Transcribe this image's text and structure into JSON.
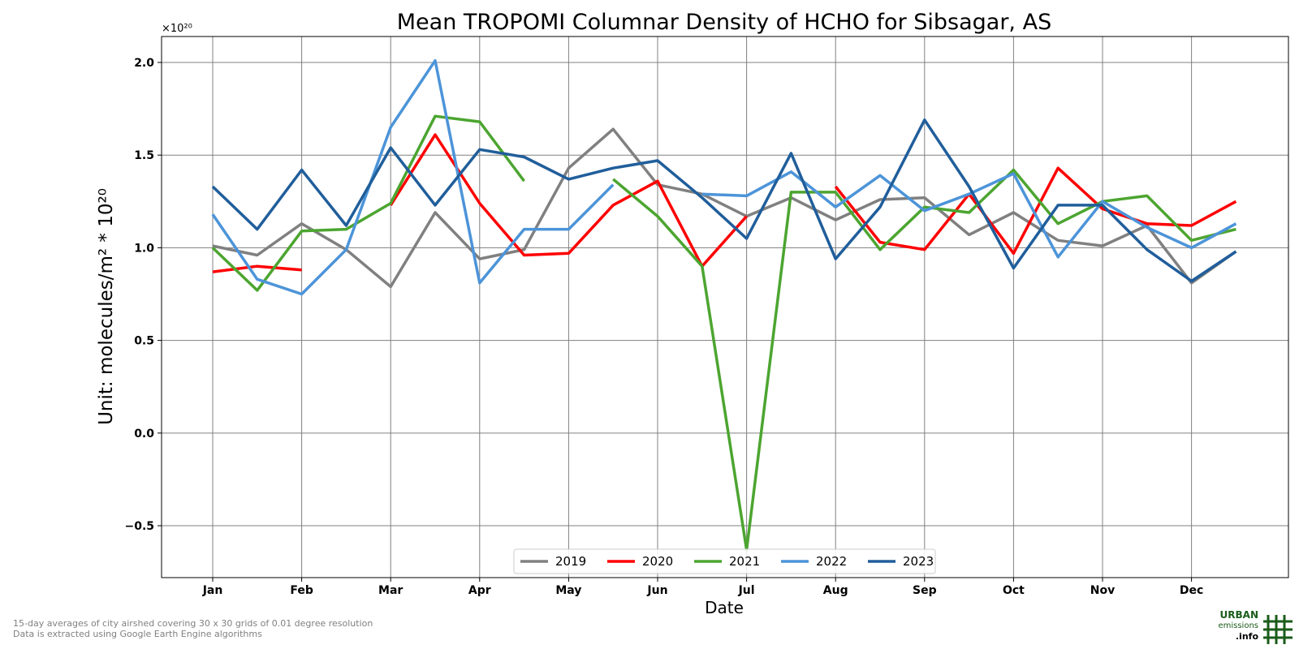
{
  "chart_data": {
    "type": "line",
    "title": "Mean TROPOMI Columnar Density of HCHO for Sibsagar, AS",
    "xlabel": "Date",
    "ylabel": "Unit: molecules/m² * 10²⁰",
    "y_offset_label": "×10²⁰",
    "ylim": [
      -0.78,
      2.14
    ],
    "yticks": [
      -0.5,
      0.0,
      0.5,
      1.0,
      1.5,
      2.0
    ],
    "ytick_labels": [
      "−0.5",
      "0.0",
      "0.5",
      "1.0",
      "1.5",
      "2.0"
    ],
    "month_ticks": [
      "Jan",
      "Feb",
      "Mar",
      "Apr",
      "May",
      "Jun",
      "Jul",
      "Aug",
      "Sep",
      "Oct",
      "Nov",
      "Dec"
    ],
    "x_note": "x values are 15-day periods numbered from 1 (= first half of Jan) to 24 (= second half of Dec)",
    "grid": true,
    "legend_position": "lower center",
    "series": [
      {
        "name": "2019",
        "color": "#808080",
        "points": [
          [
            1,
            1.01
          ],
          [
            2,
            0.96
          ],
          [
            3,
            1.13
          ],
          [
            4,
            0.99
          ],
          [
            5,
            0.79
          ],
          [
            6,
            1.19
          ],
          [
            7,
            0.94
          ],
          [
            8,
            0.99
          ],
          [
            9,
            1.43
          ],
          [
            10,
            1.64
          ],
          [
            11,
            1.34
          ],
          [
            12,
            1.29
          ],
          [
            13,
            1.17
          ],
          [
            14,
            1.27
          ],
          [
            15,
            1.15
          ],
          [
            16,
            1.26
          ],
          [
            17,
            1.27
          ],
          [
            18,
            1.07
          ],
          [
            19,
            1.19
          ],
          [
            20,
            1.04
          ],
          [
            21,
            1.01
          ],
          [
            22,
            1.12
          ],
          [
            23,
            0.81
          ],
          [
            24,
            0.98
          ]
        ]
      },
      {
        "name": "2020",
        "color": "#ff0000",
        "points": [
          [
            1,
            0.87
          ],
          [
            2,
            0.9
          ],
          [
            3,
            0.88
          ],
          [
            null,
            null
          ],
          [
            5,
            1.23
          ],
          [
            6,
            1.61
          ],
          [
            7,
            1.24
          ],
          [
            8,
            0.96
          ],
          [
            9,
            0.97
          ],
          [
            10,
            1.23
          ],
          [
            11,
            1.36
          ],
          [
            12,
            0.9
          ],
          [
            13,
            1.17
          ],
          [
            null,
            null
          ],
          [
            15,
            1.33
          ],
          [
            16,
            1.03
          ],
          [
            17,
            0.99
          ],
          [
            18,
            1.29
          ],
          [
            19,
            0.97
          ],
          [
            20,
            1.43
          ],
          [
            21,
            1.21
          ],
          [
            22,
            1.13
          ],
          [
            23,
            1.12
          ],
          [
            24,
            1.25
          ]
        ]
      },
      {
        "name": "2021",
        "color": "#4ca530",
        "points": [
          [
            1,
            1.0
          ],
          [
            2,
            0.77
          ],
          [
            3,
            1.09
          ],
          [
            4,
            1.1
          ],
          [
            5,
            1.24
          ],
          [
            6,
            1.71
          ],
          [
            7,
            1.68
          ],
          [
            8,
            1.36
          ],
          [
            null,
            null
          ],
          [
            10,
            1.37
          ],
          [
            11,
            1.17
          ],
          [
            12,
            0.9
          ],
          [
            13,
            -0.63
          ],
          [
            14,
            1.3
          ],
          [
            15,
            1.3
          ],
          [
            16,
            0.99
          ],
          [
            17,
            1.22
          ],
          [
            18,
            1.19
          ],
          [
            19,
            1.42
          ],
          [
            20,
            1.13
          ],
          [
            21,
            1.25
          ],
          [
            22,
            1.28
          ],
          [
            23,
            1.04
          ],
          [
            24,
            1.1
          ]
        ]
      },
      {
        "name": "2022",
        "color": "#4c94d9",
        "points": [
          [
            1,
            1.18
          ],
          [
            2,
            0.83
          ],
          [
            3,
            0.75
          ],
          [
            4,
            0.99
          ],
          [
            5,
            1.65
          ],
          [
            6,
            2.01
          ],
          [
            7,
            0.81
          ],
          [
            8,
            1.1
          ],
          [
            9,
            1.1
          ],
          [
            10,
            1.34
          ],
          [
            null,
            null
          ],
          [
            12,
            1.29
          ],
          [
            13,
            1.28
          ],
          [
            14,
            1.41
          ],
          [
            15,
            1.22
          ],
          [
            16,
            1.39
          ],
          [
            17,
            1.2
          ],
          [
            18,
            1.29
          ],
          [
            19,
            1.4
          ],
          [
            20,
            0.95
          ],
          [
            21,
            1.25
          ],
          [
            22,
            1.11
          ],
          [
            23,
            1.0
          ],
          [
            24,
            1.13
          ]
        ]
      },
      {
        "name": "2023",
        "color": "#205e9b",
        "points": [
          [
            1,
            1.33
          ],
          [
            2,
            1.1
          ],
          [
            3,
            1.42
          ],
          [
            4,
            1.12
          ],
          [
            5,
            1.54
          ],
          [
            6,
            1.23
          ],
          [
            7,
            1.53
          ],
          [
            8,
            1.49
          ],
          [
            9,
            1.37
          ],
          [
            10,
            1.43
          ],
          [
            11,
            1.47
          ],
          [
            12,
            1.27
          ],
          [
            13,
            1.05
          ],
          [
            14,
            1.51
          ],
          [
            15,
            0.94
          ],
          [
            16,
            1.22
          ],
          [
            17,
            1.69
          ],
          [
            18,
            1.33
          ],
          [
            19,
            0.89
          ],
          [
            20,
            1.23
          ],
          [
            21,
            1.23
          ],
          [
            22,
            0.99
          ],
          [
            23,
            0.82
          ],
          [
            24,
            0.98
          ]
        ]
      }
    ]
  },
  "footnote": {
    "line1": "15-day averages of city airshed covering 30 x 30 grids of 0.01 degree resolution",
    "line2": "Data is extracted using Google Earth Engine algorithms"
  },
  "logo": {
    "line1": "URBAN",
    "line2": "emissions",
    "line3": ".info",
    "color": "#1a5c1a"
  }
}
